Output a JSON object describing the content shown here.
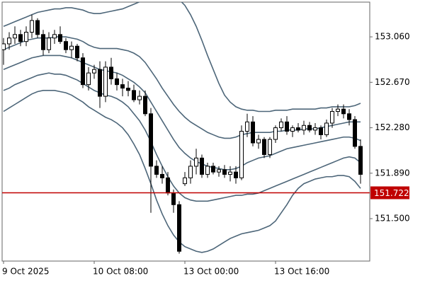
{
  "chart_data": {
    "type": "candlestick",
    "categories": [
      "9 Oct 2025",
      null,
      null,
      null,
      null,
      null,
      null,
      null,
      null,
      null,
      null,
      null,
      null,
      null,
      null,
      null,
      "10 Oct 08:00",
      null,
      null,
      null,
      null,
      null,
      null,
      null,
      null,
      null,
      null,
      null,
      null,
      null,
      null,
      null,
      "13 Oct 00:00",
      null,
      null,
      null,
      null,
      null,
      null,
      null,
      null,
      null,
      null,
      null,
      null,
      null,
      null,
      null,
      "13 Oct 16:00",
      null,
      null,
      null,
      null,
      null,
      null,
      null,
      null,
      null,
      null,
      null,
      null,
      null,
      null,
      null
    ],
    "open": [
      152.95,
      153.0,
      153.05,
      153.08,
      153.02,
      153.1,
      153.2,
      153.08,
      152.95,
      153.05,
      153.08,
      153.02,
      152.95,
      152.98,
      152.88,
      152.65,
      152.75,
      152.78,
      152.55,
      152.8,
      152.7,
      152.65,
      152.62,
      152.6,
      152.52,
      152.55,
      152.4,
      151.95,
      151.88,
      151.85,
      151.72,
      151.62,
      151.8,
      151.85,
      151.95,
      152.02,
      151.88,
      151.95,
      151.9,
      151.92,
      151.88,
      151.9,
      151.85,
      152.25,
      152.33,
      152.15,
      152.18,
      152.05,
      152.18,
      152.28,
      152.33,
      152.25,
      152.28,
      152.26,
      152.3,
      152.26,
      152.28,
      152.22,
      152.32,
      152.42,
      152.44,
      152.4,
      152.35,
      152.12
    ],
    "high": [
      153.05,
      153.1,
      153.15,
      153.12,
      153.15,
      153.25,
      153.22,
      153.12,
      153.1,
      153.12,
      153.15,
      153.05,
      153.02,
      153.0,
      152.92,
      152.8,
      152.82,
      152.85,
      152.85,
      152.88,
      152.75,
      152.7,
      152.68,
      152.65,
      152.6,
      152.6,
      152.45,
      152.0,
      151.95,
      151.9,
      151.75,
      151.65,
      151.9,
      152.0,
      152.1,
      152.05,
      151.98,
      151.98,
      151.95,
      151.96,
      151.95,
      151.95,
      152.3,
      152.4,
      152.38,
      152.22,
      152.2,
      152.2,
      152.3,
      152.36,
      152.38,
      152.3,
      152.32,
      152.34,
      152.33,
      152.32,
      152.3,
      152.35,
      152.45,
      152.48,
      152.48,
      152.44,
      152.38,
      152.18
    ],
    "low": [
      152.82,
      152.95,
      153.0,
      152.98,
      152.98,
      153.05,
      153.05,
      152.9,
      152.92,
      153.0,
      153.0,
      152.92,
      152.88,
      152.85,
      152.62,
      152.6,
      152.7,
      152.45,
      152.5,
      152.65,
      152.6,
      152.55,
      152.55,
      152.5,
      152.48,
      152.38,
      151.55,
      151.85,
      151.8,
      151.7,
      151.55,
      151.2,
      151.78,
      151.8,
      151.88,
      151.85,
      151.85,
      151.88,
      151.86,
      151.85,
      151.82,
      151.8,
      151.83,
      152.2,
      152.12,
      152.1,
      152.02,
      152.02,
      152.15,
      152.25,
      152.22,
      152.2,
      152.24,
      152.22,
      152.24,
      152.22,
      152.18,
      152.2,
      152.28,
      152.38,
      152.36,
      152.3,
      152.1,
      151.8
    ],
    "close": [
      153.0,
      153.05,
      153.08,
      153.02,
      153.1,
      153.2,
      153.08,
      152.95,
      153.05,
      153.08,
      153.02,
      152.95,
      152.98,
      152.88,
      152.65,
      152.75,
      152.78,
      152.55,
      152.8,
      152.7,
      152.65,
      152.62,
      152.6,
      152.52,
      152.55,
      152.4,
      151.95,
      151.88,
      151.85,
      151.72,
      151.62,
      151.22,
      151.85,
      151.95,
      152.02,
      151.88,
      151.95,
      151.9,
      151.92,
      151.88,
      151.9,
      151.85,
      152.25,
      152.33,
      152.15,
      152.18,
      152.05,
      152.18,
      152.28,
      152.33,
      152.25,
      152.28,
      152.26,
      152.3,
      152.26,
      152.28,
      152.22,
      152.32,
      152.42,
      152.44,
      152.4,
      152.35,
      152.12,
      151.88
    ],
    "bands": [
      {
        "color": "#4d6679",
        "values": [
          153.15,
          153.17,
          153.19,
          153.21,
          153.23,
          153.25,
          153.27,
          153.28,
          153.29,
          153.3,
          153.3,
          153.31,
          153.31,
          153.3,
          153.29,
          153.27,
          153.26,
          153.26,
          153.27,
          153.28,
          153.29,
          153.3,
          153.32,
          153.34,
          153.36,
          153.38,
          153.4,
          153.42,
          153.42,
          153.42,
          153.4,
          153.38,
          153.33,
          153.25,
          153.15,
          153.03,
          152.9,
          152.78,
          152.66,
          152.56,
          152.5,
          152.46,
          152.44,
          152.43,
          152.43,
          152.42,
          152.42,
          152.42,
          152.43,
          152.43,
          152.43,
          152.44,
          152.44,
          152.44,
          152.44,
          152.44,
          152.45,
          152.45,
          152.46,
          152.46,
          152.46,
          152.46,
          152.47,
          152.49
        ]
      },
      {
        "color": "#4d6679",
        "values": [
          152.95,
          152.97,
          152.99,
          153.01,
          153.03,
          153.04,
          153.05,
          153.05,
          153.05,
          153.06,
          153.06,
          153.06,
          153.05,
          153.04,
          153.02,
          152.99,
          152.97,
          152.96,
          152.96,
          152.96,
          152.96,
          152.95,
          152.94,
          152.92,
          152.89,
          152.84,
          152.77,
          152.7,
          152.62,
          152.55,
          152.48,
          152.42,
          152.37,
          152.33,
          152.3,
          152.27,
          152.24,
          152.22,
          152.2,
          152.19,
          152.19,
          152.2,
          152.22,
          152.23,
          152.24,
          152.24,
          152.24,
          152.24,
          152.25,
          152.25,
          152.26,
          152.26,
          152.26,
          152.27,
          152.27,
          152.27,
          152.28,
          152.29,
          152.3,
          152.31,
          152.32,
          152.33,
          152.33,
          152.33
        ]
      },
      {
        "color": "#4d6679",
        "values": [
          152.78,
          152.8,
          152.82,
          152.84,
          152.86,
          152.88,
          152.89,
          152.9,
          152.9,
          152.9,
          152.9,
          152.89,
          152.88,
          152.86,
          152.84,
          152.82,
          152.8,
          152.78,
          152.77,
          152.76,
          152.75,
          152.73,
          152.7,
          152.67,
          152.63,
          152.58,
          152.5,
          152.42,
          152.34,
          152.26,
          152.18,
          152.11,
          152.06,
          152.02,
          151.99,
          151.97,
          151.95,
          151.94,
          151.93,
          151.92,
          151.92,
          151.93,
          151.95,
          151.98,
          152.0,
          152.02,
          152.03,
          152.04,
          152.06,
          152.08,
          152.1,
          152.11,
          152.12,
          152.13,
          152.14,
          152.15,
          152.16,
          152.17,
          152.18,
          152.19,
          152.2,
          152.2,
          152.19,
          152.17
        ]
      },
      {
        "color": "#4d6679",
        "values": [
          152.6,
          152.62,
          152.65,
          152.67,
          152.69,
          152.71,
          152.73,
          152.74,
          152.75,
          152.74,
          152.74,
          152.73,
          152.71,
          152.69,
          152.66,
          152.63,
          152.6,
          152.58,
          152.56,
          152.55,
          152.53,
          152.5,
          152.46,
          152.4,
          152.34,
          152.26,
          152.16,
          152.05,
          151.95,
          151.86,
          151.78,
          151.72,
          151.68,
          151.66,
          151.65,
          151.65,
          151.65,
          151.66,
          151.67,
          151.68,
          151.69,
          151.7,
          151.7,
          151.71,
          151.71,
          151.72,
          151.74,
          151.76,
          151.78,
          151.8,
          151.82,
          151.84,
          151.86,
          151.88,
          151.9,
          151.92,
          151.94,
          151.96,
          151.98,
          152.0,
          152.02,
          152.03,
          152.02,
          151.98
        ]
      },
      {
        "color": "#4d6679",
        "values": [
          152.42,
          152.45,
          152.48,
          152.51,
          152.54,
          152.57,
          152.59,
          152.6,
          152.6,
          152.6,
          152.59,
          152.58,
          152.56,
          152.53,
          152.5,
          152.46,
          152.43,
          152.4,
          152.37,
          152.35,
          152.32,
          152.28,
          152.22,
          152.14,
          152.05,
          151.93,
          151.8,
          151.66,
          151.54,
          151.44,
          151.36,
          151.3,
          151.26,
          151.24,
          151.22,
          151.21,
          151.22,
          151.24,
          151.27,
          151.3,
          151.33,
          151.35,
          151.37,
          151.38,
          151.39,
          151.4,
          151.42,
          151.44,
          151.48,
          151.55,
          151.62,
          151.7,
          151.76,
          151.8,
          151.82,
          151.84,
          151.85,
          151.86,
          151.86,
          151.87,
          151.87,
          151.86,
          151.82,
          151.76
        ]
      }
    ],
    "up_color": "#ffffff",
    "down_color": "#000000",
    "hline": {
      "value": 151.722,
      "color": "#c00000"
    },
    "ylim": [
      151.136,
      153.358
    ],
    "yticks": [
      {
        "value": 151.5,
        "label": "151.500"
      },
      {
        "value": 151.89,
        "label": "151.890"
      },
      {
        "value": 152.28,
        "label": "152.280"
      },
      {
        "value": 152.67,
        "label": "152.670"
      },
      {
        "value": 153.06,
        "label": "153.060"
      }
    ]
  }
}
